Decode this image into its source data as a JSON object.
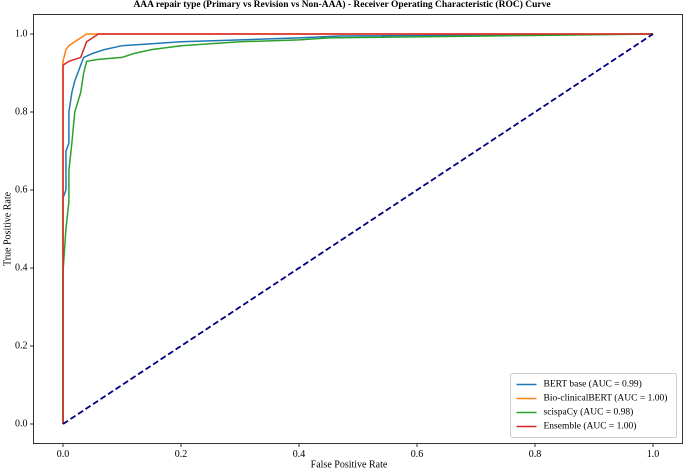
{
  "chart_data": {
    "type": "line",
    "title": "AAA repair type (Primary vs Revision vs Non-AAA) - Receiver Operating Characteristic (ROC) Curve",
    "x_label": "False Positive Rate",
    "y_label": "True Positive Rate",
    "xlim": [
      -0.05,
      1.05
    ],
    "ylim": [
      -0.05,
      1.05
    ],
    "xticks": [
      {
        "value": 0,
        "label": "0.0"
      },
      {
        "value": 0.2,
        "label": "0.2"
      },
      {
        "value": 0.4,
        "label": "0.4"
      },
      {
        "value": 0.6,
        "label": "0.6"
      },
      {
        "value": 0.8,
        "label": "0.8"
      },
      {
        "value": 1,
        "label": "1.0"
      }
    ],
    "yticks": [
      {
        "value": 0,
        "label": "0.0"
      },
      {
        "value": 0.2,
        "label": "0.2"
      },
      {
        "value": 0.4,
        "label": "0.4"
      },
      {
        "value": 0.6,
        "label": "0.6"
      },
      {
        "value": 0.8,
        "label": "0.8"
      },
      {
        "value": 1,
        "label": "1.0"
      }
    ],
    "legend": "lower right",
    "series": [
      {
        "name": "BERT base (AUC = 0.99)",
        "color": "#1f77b4",
        "x": [
          0,
          0,
          0.005,
          0.005,
          0.01,
          0.01,
          0.015,
          0.02,
          0.025,
          0.03,
          0.035,
          0.05,
          0.07,
          0.1,
          0.15,
          0.2,
          0.3,
          0.4,
          0.47,
          1
        ],
        "values": [
          0,
          0.58,
          0.6,
          0.7,
          0.72,
          0.8,
          0.85,
          0.88,
          0.9,
          0.92,
          0.94,
          0.95,
          0.96,
          0.97,
          0.975,
          0.98,
          0.985,
          0.99,
          0.995,
          1
        ]
      },
      {
        "name": "Bio-clinicalBERT (AUC = 1.00)",
        "color": "#ff7f0e",
        "x": [
          0,
          0,
          0.005,
          0.01,
          0.02,
          0.03,
          0.04,
          1
        ],
        "values": [
          0,
          0.93,
          0.96,
          0.97,
          0.98,
          0.99,
          1,
          1
        ]
      },
      {
        "name": "scispaCy (AUC = 0.98)",
        "color": "#2ca02c",
        "x": [
          0,
          0,
          0.005,
          0.01,
          0.01,
          0.015,
          0.02,
          0.03,
          0.035,
          0.04,
          0.06,
          0.1,
          0.12,
          0.15,
          0.2,
          0.3,
          0.4,
          0.45,
          1
        ],
        "values": [
          0,
          0.39,
          0.5,
          0.57,
          0.65,
          0.72,
          0.8,
          0.85,
          0.9,
          0.93,
          0.935,
          0.94,
          0.95,
          0.96,
          0.97,
          0.98,
          0.985,
          0.99,
          1
        ]
      },
      {
        "name": "Ensemble (AUC = 1.00)",
        "color": "#d62728",
        "x": [
          0,
          0,
          0.01,
          0.03,
          0.035,
          0.04,
          0.05,
          0.06,
          1
        ],
        "values": [
          0,
          0.92,
          0.93,
          0.94,
          0.96,
          0.98,
          0.99,
          1,
          1
        ]
      }
    ],
    "diagonal": {
      "color": "#000080",
      "dashed": true,
      "x": [
        0,
        1
      ],
      "values": [
        0,
        1
      ]
    }
  }
}
